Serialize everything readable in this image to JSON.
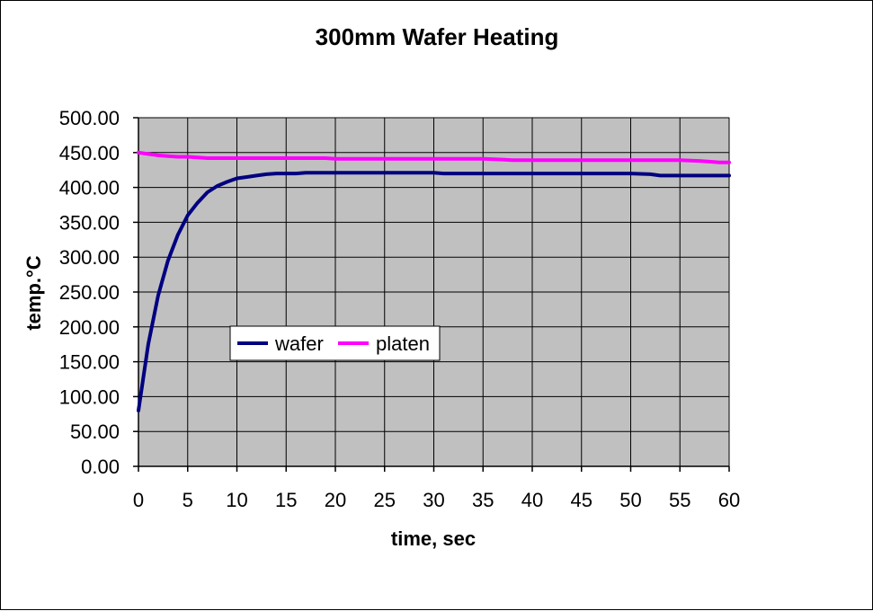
{
  "chart_data": {
    "type": "line",
    "title": "300mm Wafer Heating",
    "xlabel": "time, sec",
    "ylabel": "temp.°C",
    "xlim": [
      0,
      60
    ],
    "ylim": [
      0,
      500
    ],
    "x_ticks": [
      0,
      5,
      10,
      15,
      20,
      25,
      30,
      35,
      40,
      45,
      50,
      55,
      60
    ],
    "y_ticks": [
      0,
      50,
      100,
      150,
      200,
      250,
      300,
      350,
      400,
      450,
      500
    ],
    "x_tick_labels": [
      "0",
      "5",
      "10",
      "15",
      "20",
      "25",
      "30",
      "35",
      "40",
      "45",
      "50",
      "55",
      "60"
    ],
    "y_tick_labels": [
      "0.00",
      "50.00",
      "100.00",
      "150.00",
      "200.00",
      "250.00",
      "300.00",
      "350.00",
      "400.00",
      "450.00",
      "500.00"
    ],
    "grid": true,
    "legend_position": "center-left",
    "plot_background": "#c0c0c0",
    "series": [
      {
        "name": "wafer",
        "color": "#000080",
        "x": [
          0,
          1,
          2,
          3,
          4,
          5,
          6,
          7,
          8,
          9,
          10,
          11,
          12,
          13,
          14,
          15,
          16,
          17,
          18,
          19,
          20,
          22,
          24,
          26,
          28,
          30,
          31,
          33,
          35,
          38,
          40,
          45,
          50,
          52,
          53,
          55,
          57,
          60
        ],
        "y": [
          80,
          175,
          245,
          295,
          332,
          360,
          378,
          393,
          402,
          408,
          413,
          415,
          417,
          419,
          420,
          420,
          420,
          421,
          421,
          421,
          421,
          421,
          421,
          421,
          421,
          421,
          420,
          420,
          420,
          420,
          420,
          420,
          420,
          419,
          417,
          417,
          417,
          417
        ]
      },
      {
        "name": "platen",
        "color": "#ff00ff",
        "x": [
          0,
          1,
          2,
          3,
          4,
          5,
          6,
          7,
          8,
          10,
          15,
          19,
          20,
          25,
          30,
          35,
          37,
          38,
          40,
          45,
          50,
          55,
          57,
          58,
          59,
          60
        ],
        "y": [
          450,
          448,
          446,
          445,
          444,
          444,
          443,
          442,
          442,
          442,
          442,
          442,
          441,
          441,
          441,
          441,
          440,
          439,
          439,
          439,
          439,
          439,
          438,
          437,
          436,
          436
        ]
      }
    ]
  }
}
